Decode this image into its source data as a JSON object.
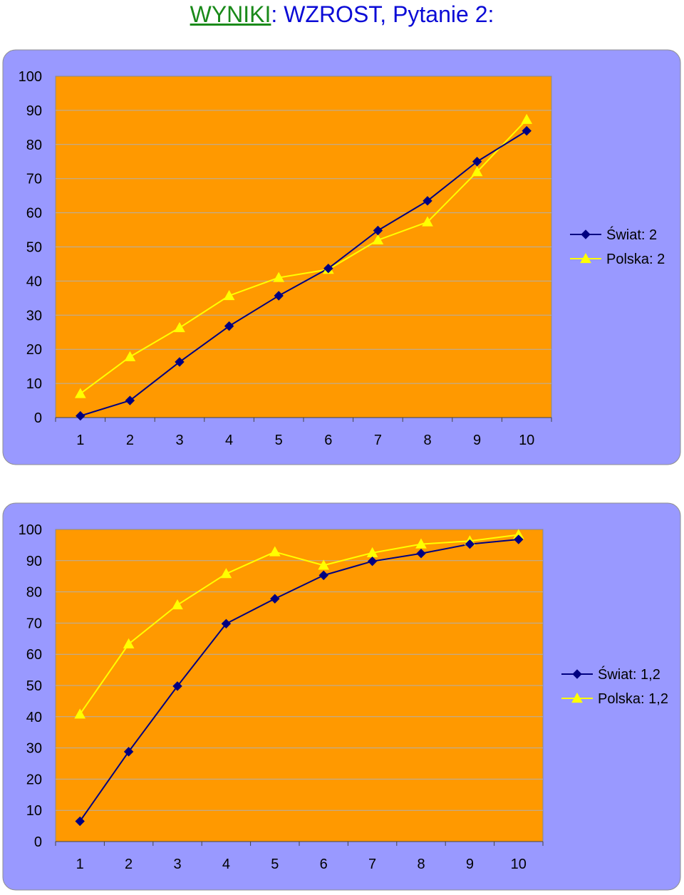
{
  "title": {
    "part1": "WYNIKI",
    "part2": ": WZROST, Pytanie 2:"
  },
  "colors": {
    "panel_background": "#9999ff",
    "plot_background": "#ff9900",
    "series_world": "#000080",
    "series_poland": "#ffff00",
    "title_blue": "#0b0bd6",
    "title_green": "#1a8a1a"
  },
  "chart_data": [
    {
      "type": "line",
      "title": "",
      "xlabel": "",
      "ylabel": "",
      "categories": [
        "1",
        "2",
        "3",
        "4",
        "5",
        "6",
        "7",
        "8",
        "9",
        "10"
      ],
      "ylim": [
        0,
        100
      ],
      "yticks": [
        0,
        10,
        20,
        30,
        40,
        50,
        60,
        70,
        80,
        90,
        100
      ],
      "grid": true,
      "legend_position": "right",
      "series": [
        {
          "name": "Świat: 2",
          "marker": "diamond",
          "color": "#000080",
          "values": [
            0.5,
            5,
            16.3,
            26.8,
            35.7,
            43.7,
            54.8,
            63.5,
            75,
            84
          ]
        },
        {
          "name": "Polska: 2",
          "marker": "triangle",
          "color": "#ffff00",
          "values": [
            7,
            17.8,
            26.3,
            35.7,
            41,
            43.4,
            52,
            57.3,
            72,
            87.3
          ]
        }
      ]
    },
    {
      "type": "line",
      "title": "",
      "xlabel": "",
      "ylabel": "",
      "categories": [
        "1",
        "2",
        "3",
        "4",
        "5",
        "6",
        "7",
        "8",
        "9",
        "10"
      ],
      "ylim": [
        0,
        100
      ],
      "yticks": [
        0,
        10,
        20,
        30,
        40,
        50,
        60,
        70,
        80,
        90,
        100
      ],
      "grid": true,
      "legend_position": "right",
      "series": [
        {
          "name": "Świat: 1,2",
          "marker": "diamond",
          "color": "#000080",
          "values": [
            6.5,
            28.8,
            49.8,
            69.8,
            77.8,
            85.3,
            89.8,
            92.3,
            95.3,
            96.8
          ]
        },
        {
          "name": "Polska: 1,2",
          "marker": "triangle",
          "color": "#ffff00",
          "values": [
            40.8,
            63.3,
            75.8,
            85.8,
            92.8,
            88.5,
            92.5,
            95.3,
            96.3,
            98.3
          ]
        }
      ]
    }
  ]
}
